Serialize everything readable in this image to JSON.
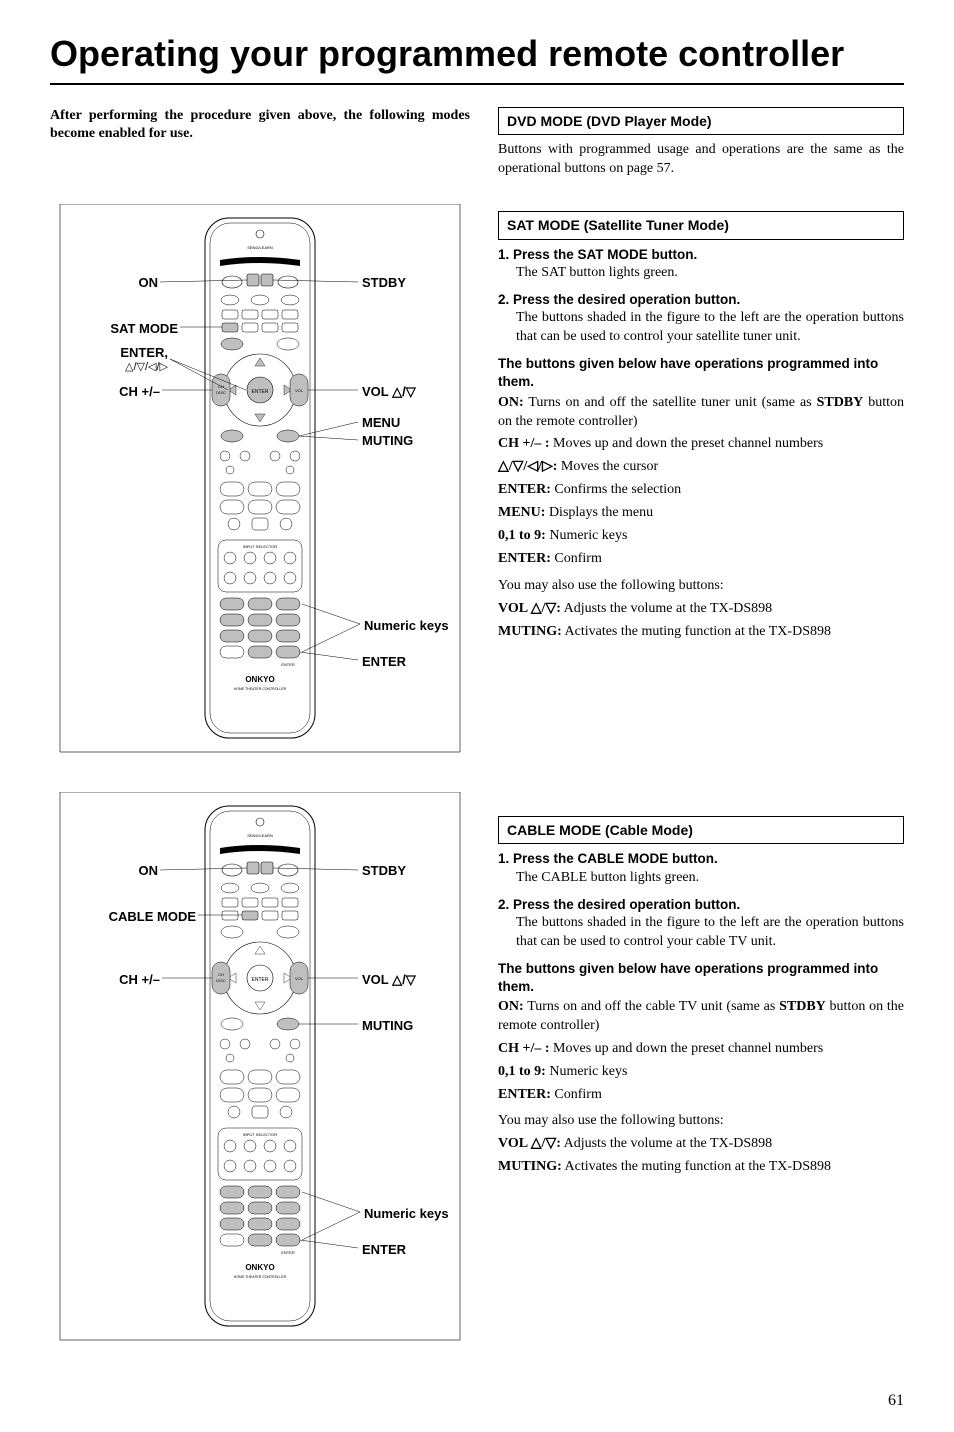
{
  "page_title": "Operating your programmed remote controller",
  "intro": "After performing the procedure given above, the following modes become enabled for use.",
  "page_number": "61",
  "dvd": {
    "heading": "DVD MODE (DVD Player Mode)",
    "body": "Buttons with programmed usage and operations are the same as the operational buttons on page 57."
  },
  "sat": {
    "heading": "SAT MODE (Satellite Tuner Mode)",
    "step1_title": "1. Press the SAT MODE button.",
    "step1_body": "The SAT button lights green.",
    "step2_title": "2. Press the desired operation button.",
    "step2_body": "The buttons shaded in the figure to the left are the operation buttons that can be used to control your satellite tuner unit.",
    "sub_head": "The buttons given below have operations programmed into them.",
    "defs": [
      {
        "k": "ON:",
        "v": " Turns on and off the satellite tuner unit (same as ",
        "k2": "STDBY",
        "v2": " button on the remote controller)"
      },
      {
        "k": "CH +/– :",
        "v": " Moves up and down the preset channel numbers"
      },
      {
        "k": "△/▽/◁/▷:",
        "v": " Moves the cursor"
      },
      {
        "k": "ENTER:",
        "v": " Confirms the selection"
      },
      {
        "k": "MENU:",
        "v": " Displays the menu"
      },
      {
        "k": "0,1 to 9:",
        "v": " Numeric keys"
      },
      {
        "k": "ENTER:",
        "v": " Confirm"
      }
    ],
    "also_lead": "You may also use the following buttons:",
    "also": [
      {
        "k": "VOL △/▽:",
        "v": " Adjusts the volume at the TX-DS898"
      },
      {
        "k": "MUTING:",
        "v": " Activates the muting function at the TX-DS898"
      }
    ]
  },
  "cable": {
    "heading": "CABLE MODE (Cable Mode)",
    "step1_title": "1. Press the CABLE MODE button.",
    "step1_body": "The CABLE button lights green.",
    "step2_title": "2. Press the desired operation button.",
    "step2_body": "The buttons shaded in the figure to the left are the operation buttons that can be used to control your cable TV unit.",
    "sub_head": "The buttons given below have operations programmed into them.",
    "defs": [
      {
        "k": "ON:",
        "v": " Turns on and off the cable TV unit (same as ",
        "k2": "STDBY",
        "v2": " button on the remote controller)"
      },
      {
        "k": "CH +/– :",
        "v": " Moves up and down the preset channel numbers"
      },
      {
        "k": "0,1 to 9:",
        "v": " Numeric keys"
      },
      {
        "k": "ENTER:",
        "v": " Confirm"
      }
    ],
    "also_lead": "You may also use the following buttons:",
    "also": [
      {
        "k": "VOL △/▽:",
        "v": " Adjusts the volume at the TX-DS898"
      },
      {
        "k": "MUTING:",
        "v": " Activates the muting function at the TX-DS898"
      }
    ]
  },
  "remote_labels": {
    "on": "ON",
    "stdby": "STDBY",
    "sat_mode": "SAT MODE",
    "cable_mode": "CABLE MODE",
    "enter_dir": "ENTER,",
    "enter_sub": "△/▽/◁/▷",
    "ch": "CH +/–",
    "vol": "VOL △/▽",
    "menu": "MENU",
    "muting": "MUTING",
    "numeric": "Numeric keys",
    "enter": "ENTER",
    "brand": "ONKYO"
  }
}
